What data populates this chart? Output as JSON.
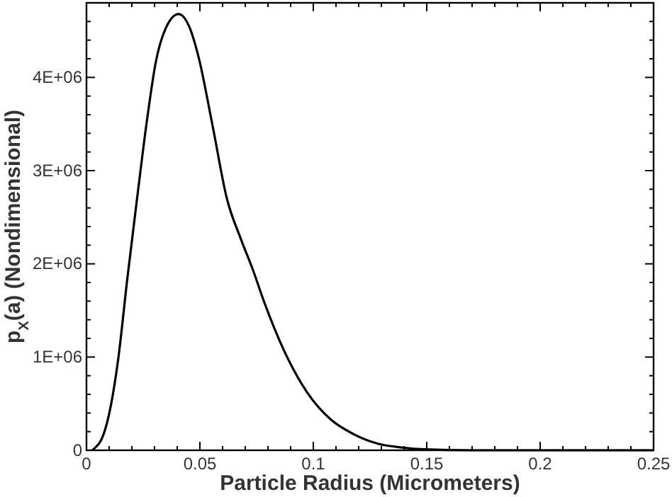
{
  "chart_data": {
    "type": "line",
    "xlabel": "Particle Radius (Micrometers)",
    "ylabel": "p$_{X}$(a) (Nondimensional)",
    "xlim": [
      0,
      0.25
    ],
    "ylim": [
      0,
      4800000
    ],
    "xticks": [
      0,
      {
        "value": 0.01,
        "label": null
      },
      {
        "value": 0.02,
        "label": null
      },
      {
        "value": 0.03,
        "label": null
      },
      {
        "value": 0.04,
        "label": null
      },
      0.05,
      {
        "value": 0.06,
        "label": null
      },
      {
        "value": 0.07,
        "label": null
      },
      {
        "value": 0.08,
        "label": null
      },
      {
        "value": 0.09,
        "label": null
      },
      0.1,
      {
        "value": 0.11,
        "label": null
      },
      {
        "value": 0.12,
        "label": null
      },
      {
        "value": 0.13,
        "label": null
      },
      {
        "value": 0.14,
        "label": null
      },
      0.15,
      {
        "value": 0.16,
        "label": null
      },
      {
        "value": 0.17,
        "label": null
      },
      {
        "value": 0.18,
        "label": null
      },
      {
        "value": 0.19,
        "label": null
      },
      0.2,
      {
        "value": 0.21,
        "label": null
      },
      {
        "value": 0.22,
        "label": null
      },
      {
        "value": 0.23,
        "label": null
      },
      {
        "value": 0.24,
        "label": null
      },
      0.25
    ],
    "yticks": [
      0,
      {
        "value": 200000,
        "label": null
      },
      {
        "value": 400000,
        "label": null
      },
      {
        "value": 600000,
        "label": null
      },
      {
        "value": 800000,
        "label": null
      },
      {
        "value": 1000000,
        "label": "1E+06"
      },
      {
        "value": 1200000,
        "label": null
      },
      {
        "value": 1400000,
        "label": null
      },
      {
        "value": 1600000,
        "label": null
      },
      {
        "value": 1800000,
        "label": null
      },
      {
        "value": 2000000,
        "label": "2E+06"
      },
      {
        "value": 2200000,
        "label": null
      },
      {
        "value": 2400000,
        "label": null
      },
      {
        "value": 2600000,
        "label": null
      },
      {
        "value": 2800000,
        "label": null
      },
      {
        "value": 3000000,
        "label": "3E+06"
      },
      {
        "value": 3200000,
        "label": null
      },
      {
        "value": 3400000,
        "label": null
      },
      {
        "value": 3600000,
        "label": null
      },
      {
        "value": 3800000,
        "label": null
      },
      {
        "value": 4000000,
        "label": "4E+06"
      },
      {
        "value": 4200000,
        "label": null
      },
      {
        "value": 4400000,
        "label": null
      },
      {
        "value": 4600000,
        "label": null
      }
    ],
    "grid": false,
    "marker": "none",
    "line_style": "solid",
    "series": [
      {
        "color": "#000000",
        "x": [
          0.0025,
          0.0035,
          0.0067,
          0.0098,
          0.014,
          0.018,
          0.0223,
          0.0265,
          0.0306,
          0.0348,
          0.0406,
          0.0452,
          0.0494,
          0.0556,
          0.0619,
          0.068,
          0.0733,
          0.0785,
          0.0869,
          0.0973,
          0.1077,
          0.118,
          0.1285,
          0.139,
          0.149,
          0.17,
          0.25
        ],
        "values": [
          0,
          20000,
          120000,
          370000,
          980000,
          1840000,
          2700000,
          3510000,
          4170000,
          4520000,
          4680000,
          4550000,
          4220000,
          3480000,
          2700000,
          2270000,
          1940000,
          1580000,
          1080000,
          620000,
          330000,
          170000,
          70000,
          30000,
          10000,
          0,
          0
        ]
      }
    ]
  }
}
